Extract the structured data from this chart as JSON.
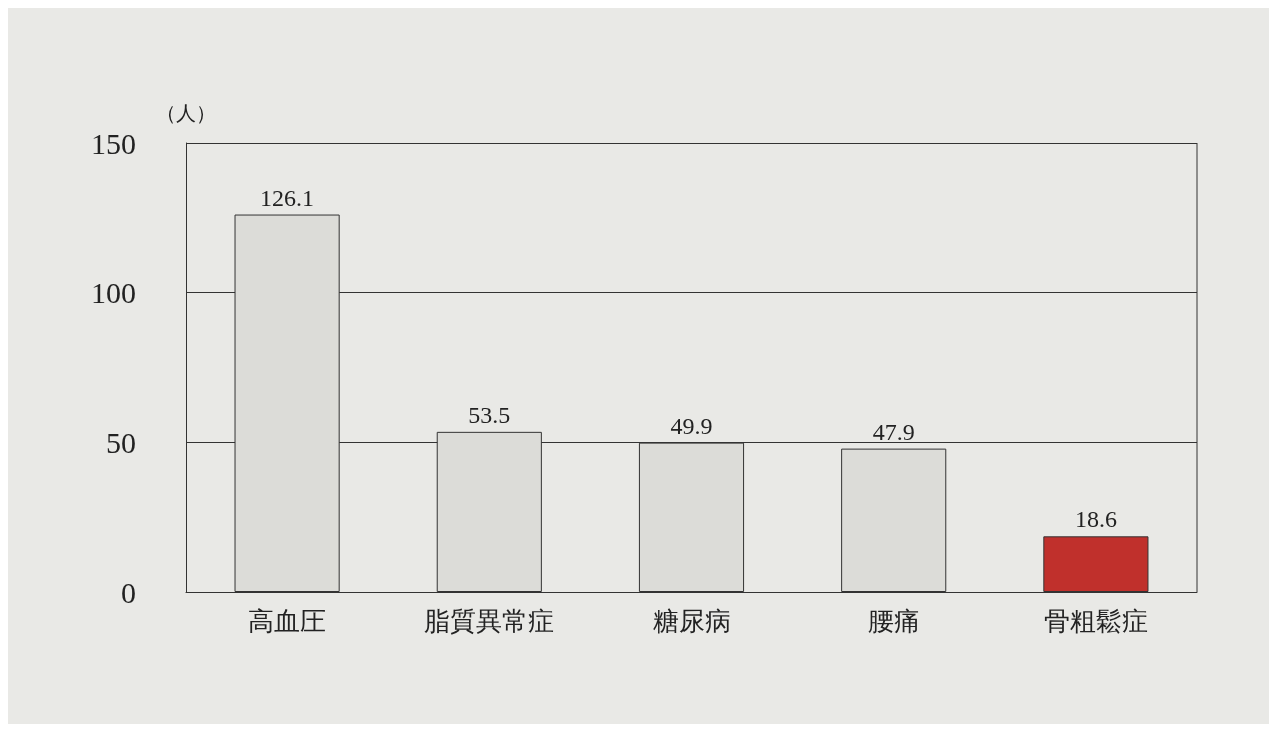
{
  "chart_data": {
    "type": "bar",
    "ylabel": "（人）",
    "categories": [
      "高血圧",
      "脂質異常症",
      "糖尿病",
      "腰痛",
      "骨粗鬆症"
    ],
    "values": [
      126.1,
      53.5,
      49.9,
      47.9,
      18.6
    ],
    "colors": [
      "#dcdcd8",
      "#dcdcd8",
      "#dcdcd8",
      "#dcdcd8",
      "#c0302c"
    ],
    "ylim": [
      0,
      150
    ],
    "yticks": [
      0,
      50,
      100,
      150
    ],
    "grid": "y",
    "data_labels": true
  }
}
